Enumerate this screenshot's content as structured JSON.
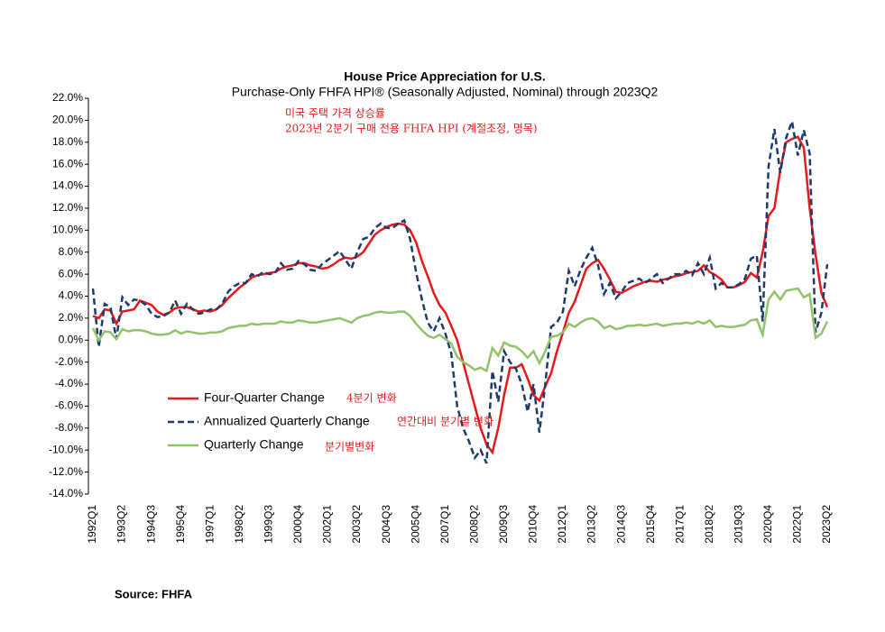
{
  "chart_data": {
    "type": "line",
    "title": "House Price Appreciation for U.S.",
    "subtitle": "Purchase-Only FHFA HPI® (Seasonally Adjusted, Nominal) through 2023Q2",
    "annotations": [
      "미국 주택 가격 상승률",
      "2023년 2분기 구매 전용 FHFA HPI (계절조정, 명목)",
      "4분기 변화",
      "연간대비 분기별 변화",
      "분기별변화"
    ],
    "source": "Source:  FHFA",
    "categories": [
      "1992Q1",
      null,
      null,
      null,
      null,
      "1993Q2",
      null,
      null,
      null,
      null,
      "1994Q3",
      null,
      null,
      null,
      null,
      "1995Q4",
      null,
      null,
      null,
      null,
      "1997Q1",
      null,
      null,
      null,
      null,
      "1998Q2",
      null,
      null,
      null,
      null,
      "1999Q3",
      null,
      null,
      null,
      null,
      "2000Q4",
      null,
      null,
      null,
      null,
      "2002Q1",
      null,
      null,
      null,
      null,
      "2003Q2",
      null,
      null,
      null,
      null,
      "2004Q3",
      null,
      null,
      null,
      null,
      "2005Q4",
      null,
      null,
      null,
      null,
      "2007Q1",
      null,
      null,
      null,
      null,
      "2008Q2",
      null,
      null,
      null,
      null,
      "2009Q3",
      null,
      null,
      null,
      null,
      "2010Q4",
      null,
      null,
      null,
      null,
      "2012Q1",
      null,
      null,
      null,
      null,
      "2013Q2",
      null,
      null,
      null,
      null,
      "2014Q3",
      null,
      null,
      null,
      null,
      "2015Q4",
      null,
      null,
      null,
      null,
      "2017Q1",
      null,
      null,
      null,
      null,
      "2018Q2",
      null,
      null,
      null,
      null,
      "2019Q3",
      null,
      null,
      null,
      null,
      "2020Q4",
      null,
      null,
      null,
      null,
      "2022Q1",
      null,
      null,
      null,
      null,
      "2023Q2"
    ],
    "series": [
      {
        "name": "Four-Quarter Change",
        "color": "#e8181c",
        "dashed": false,
        "values": [
          2.2,
          2.0,
          2.8,
          2.7,
          1.5,
          2.6,
          2.7,
          2.8,
          3.6,
          3.4,
          3.2,
          2.6,
          2.3,
          2.5,
          2.9,
          3.0,
          3.0,
          2.8,
          2.6,
          2.7,
          2.6,
          2.8,
          3.2,
          3.8,
          4.3,
          4.8,
          5.2,
          5.7,
          5.9,
          6.0,
          6.1,
          6.2,
          6.5,
          6.7,
          6.8,
          7.0,
          7.0,
          6.8,
          6.7,
          6.5,
          6.6,
          6.9,
          7.3,
          7.5,
          7.4,
          7.6,
          8.0,
          8.8,
          9.6,
          10.0,
          10.3,
          10.5,
          10.6,
          10.5,
          10.0,
          8.9,
          7.2,
          5.8,
          4.3,
          3.2,
          2.5,
          1.3,
          0.0,
          -2.0,
          -4.0,
          -6.0,
          -8.0,
          -9.5,
          -10.2,
          -8.0,
          -5.0,
          -2.5,
          -2.5,
          -2.2,
          -3.5,
          -5.0,
          -5.5,
          -4.2,
          -3.0,
          -1.0,
          0.7,
          2.5,
          3.5,
          5.0,
          6.5,
          7.0,
          7.3,
          6.5,
          5.5,
          4.4,
          4.3,
          4.6,
          4.9,
          5.1,
          5.3,
          5.4,
          5.3,
          5.5,
          5.6,
          5.8,
          5.9,
          6.1,
          6.2,
          6.3,
          6.8,
          6.2,
          5.9,
          5.5,
          4.8,
          4.8,
          5.0,
          5.3,
          6.1,
          5.7,
          8.0,
          11.3,
          12.0,
          15.5,
          18.0,
          18.3,
          18.5,
          17.5,
          12.0,
          7.8,
          4.3,
          3.0
        ]
      },
      {
        "name": "Annualized Quarterly Change",
        "color": "#1f3b6b",
        "dashed": true,
        "values": [
          4.7,
          -0.6,
          3.3,
          3.0,
          0.1,
          3.9,
          3.2,
          3.7,
          3.6,
          3.2,
          2.4,
          2.1,
          2.2,
          2.5,
          3.6,
          2.4,
          3.3,
          2.8,
          2.4,
          2.5,
          2.8,
          2.8,
          3.3,
          4.4,
          4.9,
          5.2,
          5.2,
          6.0,
          5.8,
          6.2,
          6.0,
          6.1,
          7.0,
          6.4,
          6.5,
          7.2,
          6.9,
          6.4,
          6.3,
          6.9,
          7.3,
          7.7,
          8.1,
          7.3,
          6.5,
          8.0,
          9.2,
          9.4,
          10.2,
          10.6,
          10.2,
          10.2,
          10.6,
          10.9,
          9.2,
          6.2,
          3.7,
          1.6,
          0.8,
          2.0,
          0.6,
          -1.2,
          -6.0,
          -8.0,
          -9.2,
          -10.7,
          -10.0,
          -11.2,
          -2.8,
          -5.6,
          -1.0,
          -2.0,
          -2.6,
          -4.0,
          -6.5,
          -4.0,
          -8.4,
          -4.0,
          1.2,
          1.6,
          2.6,
          6.3,
          4.9,
          6.4,
          7.5,
          8.4,
          6.8,
          4.2,
          5.2,
          3.8,
          4.4,
          5.2,
          5.4,
          5.6,
          5.2,
          5.6,
          6.0,
          5.2,
          5.6,
          6.0,
          6.0,
          6.3,
          5.9,
          7.0,
          6.0,
          7.5,
          4.7,
          5.2,
          4.8,
          4.8,
          5.1,
          5.6,
          7.4,
          7.7,
          1.7,
          15.8,
          19.2,
          15.2,
          18.4,
          19.9,
          16.8,
          19.1,
          17.0,
          0.7,
          2.5,
          6.9
        ]
      },
      {
        "name": "Quarterly Change",
        "color": "#92c26a",
        "dashed": false,
        "values": [
          1.1,
          0.0,
          0.8,
          0.7,
          0.1,
          1.0,
          0.8,
          0.9,
          0.9,
          0.8,
          0.6,
          0.5,
          0.5,
          0.6,
          0.9,
          0.6,
          0.8,
          0.7,
          0.6,
          0.6,
          0.7,
          0.7,
          0.8,
          1.1,
          1.2,
          1.3,
          1.3,
          1.5,
          1.4,
          1.5,
          1.5,
          1.5,
          1.7,
          1.6,
          1.6,
          1.8,
          1.7,
          1.6,
          1.6,
          1.7,
          1.8,
          1.9,
          2.0,
          1.8,
          1.6,
          2.0,
          2.2,
          2.3,
          2.5,
          2.6,
          2.5,
          2.5,
          2.6,
          2.6,
          2.2,
          1.5,
          0.9,
          0.4,
          0.2,
          0.5,
          0.1,
          -0.3,
          -1.5,
          -2.0,
          -2.3,
          -2.7,
          -2.5,
          -2.8,
          -0.7,
          -1.4,
          -0.2,
          -0.5,
          -0.6,
          -1.0,
          -1.6,
          -1.0,
          -2.1,
          -1.0,
          0.3,
          0.4,
          0.7,
          1.5,
          1.2,
          1.6,
          1.9,
          2.0,
          1.7,
          1.1,
          1.3,
          1.0,
          1.1,
          1.3,
          1.3,
          1.4,
          1.3,
          1.4,
          1.5,
          1.3,
          1.4,
          1.5,
          1.5,
          1.6,
          1.5,
          1.7,
          1.5,
          1.8,
          1.2,
          1.3,
          1.2,
          1.2,
          1.3,
          1.4,
          1.8,
          1.9,
          0.5,
          3.7,
          4.4,
          3.7,
          4.5,
          4.6,
          4.7,
          3.9,
          4.2,
          0.2,
          0.6,
          1.7
        ]
      }
    ],
    "ylim": [
      -14,
      22
    ],
    "yticks": [
      {
        "value": 22,
        "label": "22.0%"
      },
      {
        "value": 20,
        "label": "20.0%"
      },
      {
        "value": 18,
        "label": "18.0%"
      },
      {
        "value": 16,
        "label": "16.0%"
      },
      {
        "value": 14,
        "label": "14.0%"
      },
      {
        "value": 12,
        "label": "12.0%"
      },
      {
        "value": 10,
        "label": "10.0%"
      },
      {
        "value": 8,
        "label": "8.0%"
      },
      {
        "value": 6,
        "label": "6.0%"
      },
      {
        "value": 4,
        "label": "4.0%"
      },
      {
        "value": 2,
        "label": "2.0%"
      },
      {
        "value": 0,
        "label": "0.0%"
      },
      {
        "value": -2,
        "label": "-2.0%"
      },
      {
        "value": -4,
        "label": "-4.0%"
      },
      {
        "value": -6,
        "label": "-6.0%"
      },
      {
        "value": -8,
        "label": "-8.0%"
      },
      {
        "value": -10,
        "label": "-10.0%"
      },
      {
        "value": -12,
        "label": "-12.0%"
      },
      {
        "value": -14,
        "label": "-14.0%"
      }
    ],
    "grid": false,
    "legend": "lower-left"
  }
}
